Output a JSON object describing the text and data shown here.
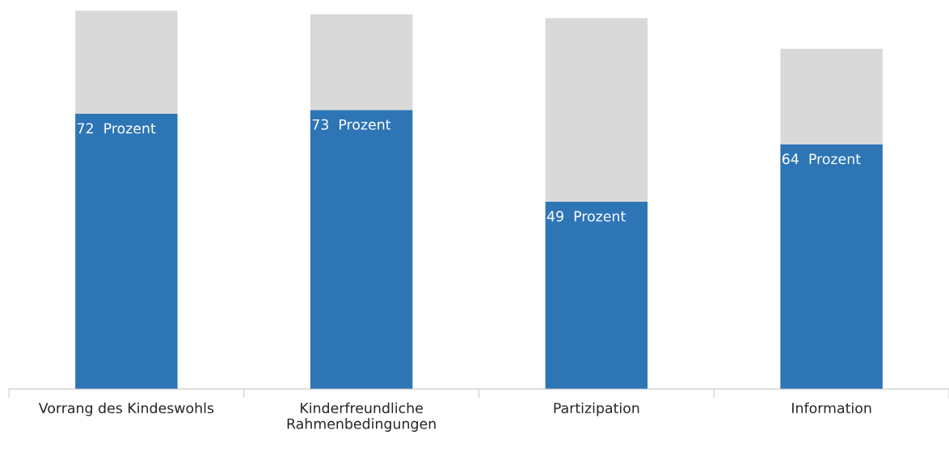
{
  "chart_data": {
    "type": "bar",
    "stacked": true,
    "categories": [
      "Vorrang des Kindeswohls",
      "Kinderfreundliche\nRahmenbedingungen",
      "Partizipation",
      "Information"
    ],
    "series": [
      {
        "color": "#2e75b6",
        "values": [
          72,
          73,
          49,
          64
        ],
        "value_labels": [
          "72  Prozent",
          "73  Prozent",
          "49  Prozent",
          "64  Prozent"
        ]
      },
      {
        "color": "#d9d9d9",
        "values": [
          27,
          25,
          48,
          25
        ]
      }
    ],
    "grid": false,
    "legend": false,
    "tick_labels": "x"
  }
}
